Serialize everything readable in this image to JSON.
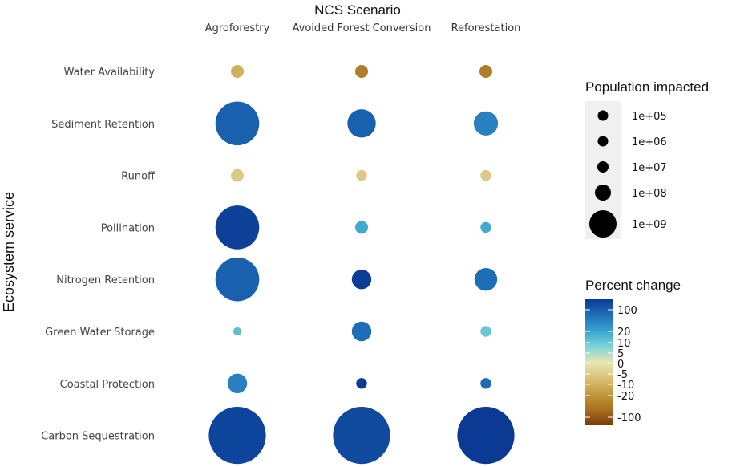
{
  "chart_data": {
    "type": "scatter",
    "title": "NCS Scenario",
    "ylabel": "Ecosystem service",
    "columns": [
      "Agroforestry",
      "Avoided Forest Conversion",
      "Reforestation"
    ],
    "rows": [
      "Water Availability",
      "Sediment Retention",
      "Runoff",
      "Pollination",
      "Nitrogen Retention",
      "Green Water Storage",
      "Coastal Protection",
      "Carbon Sequestration"
    ],
    "points": [
      {
        "scenario": "Agroforestry",
        "service": "Water Availability",
        "population": 100000,
        "percent_change": -5
      },
      {
        "scenario": "Avoided Forest Conversion",
        "service": "Water Availability",
        "population": 100000,
        "percent_change": -15
      },
      {
        "scenario": "Reforestation",
        "service": "Water Availability",
        "population": 100000,
        "percent_change": -15
      },
      {
        "scenario": "Agroforestry",
        "service": "Sediment Retention",
        "population": 1000000000,
        "percent_change": 30
      },
      {
        "scenario": "Avoided Forest Conversion",
        "service": "Sediment Retention",
        "population": 20000000,
        "percent_change": 30
      },
      {
        "scenario": "Reforestation",
        "service": "Sediment Retention",
        "population": 5000000,
        "percent_change": 15
      },
      {
        "scenario": "Agroforestry",
        "service": "Runoff",
        "population": 100000,
        "percent_change": -2
      },
      {
        "scenario": "Avoided Forest Conversion",
        "service": "Runoff",
        "population": 50000,
        "percent_change": -2
      },
      {
        "scenario": "Reforestation",
        "service": "Runoff",
        "population": 50000,
        "percent_change": -2
      },
      {
        "scenario": "Agroforestry",
        "service": "Pollination",
        "population": 1000000000,
        "percent_change": 80
      },
      {
        "scenario": "Avoided Forest Conversion",
        "service": "Pollination",
        "population": 100000,
        "percent_change": 8
      },
      {
        "scenario": "Reforestation",
        "service": "Pollination",
        "population": 50000,
        "percent_change": 8
      },
      {
        "scenario": "Agroforestry",
        "service": "Nitrogen Retention",
        "population": 1000000000,
        "percent_change": 30
      },
      {
        "scenario": "Avoided Forest Conversion",
        "service": "Nitrogen Retention",
        "population": 1000000,
        "percent_change": 90
      },
      {
        "scenario": "Reforestation",
        "service": "Nitrogen Retention",
        "population": 3000000,
        "percent_change": 20
      },
      {
        "scenario": "Agroforestry",
        "service": "Green Water Storage",
        "population": 20000,
        "percent_change": 5
      },
      {
        "scenario": "Avoided Forest Conversion",
        "service": "Green Water Storage",
        "population": 1000000,
        "percent_change": 20
      },
      {
        "scenario": "Reforestation",
        "service": "Green Water Storage",
        "population": 50000,
        "percent_change": 4
      },
      {
        "scenario": "Agroforestry",
        "service": "Coastal Protection",
        "population": 1000000,
        "percent_change": 15
      },
      {
        "scenario": "Avoided Forest Conversion",
        "service": "Coastal Protection",
        "population": 50000,
        "percent_change": 90
      },
      {
        "scenario": "Reforestation",
        "service": "Coastal Protection",
        "population": 50000,
        "percent_change": 20
      },
      {
        "scenario": "Agroforestry",
        "service": "Carbon Sequestration",
        "population": 8000000000,
        "percent_change": 70
      },
      {
        "scenario": "Avoided Forest Conversion",
        "service": "Carbon Sequestration",
        "population": 8000000000,
        "percent_change": 60
      },
      {
        "scenario": "Reforestation",
        "service": "Carbon Sequestration",
        "population": 8000000000,
        "percent_change": 250
      }
    ],
    "size_legend": {
      "title": "Population impacted",
      "entries": [
        {
          "label": "1e+05",
          "value": 100000
        },
        {
          "label": "1e+06",
          "value": 1000000
        },
        {
          "label": "1e+07",
          "value": 10000000
        },
        {
          "label": "1e+08",
          "value": 100000000
        },
        {
          "label": "1e+09",
          "value": 1000000000
        }
      ]
    },
    "color_legend": {
      "title": "Percent change",
      "ticks": [
        "100",
        "20",
        "10",
        "5",
        "0",
        "-5",
        "-10",
        "-20",
        "-100"
      ],
      "colors": [
        "#0a3a94",
        "#1f6fb8",
        "#3aa3cf",
        "#7dd3d8",
        "#e8e6b2",
        "#d8c27a",
        "#c29a3c",
        "#a8701f",
        "#7a3a0e"
      ]
    },
    "legend_position": "right"
  }
}
